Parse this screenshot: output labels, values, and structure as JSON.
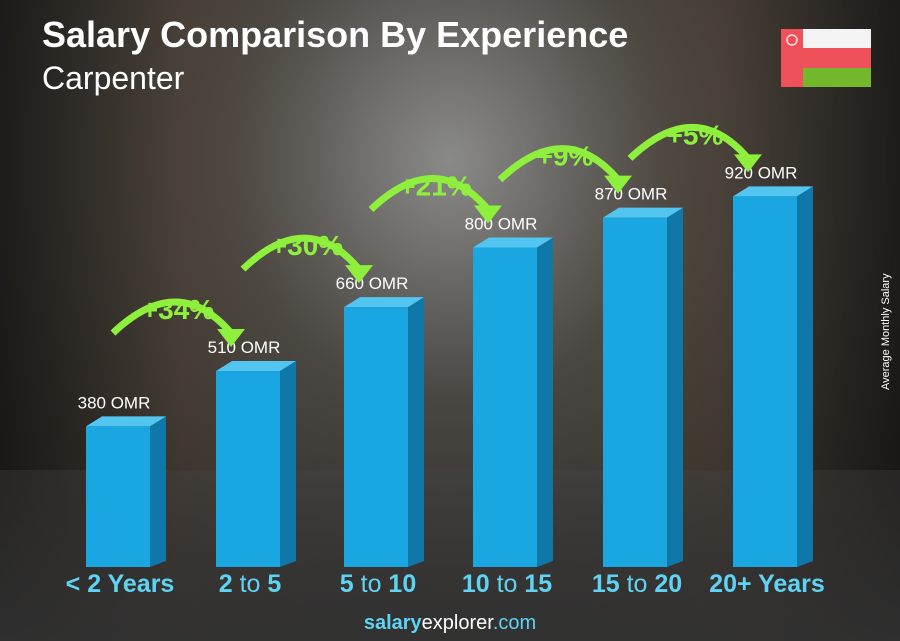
{
  "header": {
    "title": "Salary Comparison By Experience",
    "subtitle": "Carpenter"
  },
  "flag": {
    "country": "Oman",
    "colors": {
      "red": "#f0505a",
      "white": "#f4f4f4",
      "green": "#72b82a"
    }
  },
  "brand": {
    "part1": "salary",
    "part2": "explorer",
    "part3": ".com"
  },
  "chart_data": {
    "type": "bar",
    "ylabel": "Average Monthly Salary",
    "categories": [
      {
        "a": "< 2 Years",
        "mid": "",
        "b": ""
      },
      {
        "a": "2",
        "mid": " to ",
        "b": "5"
      },
      {
        "a": "5",
        "mid": " to ",
        "b": "10"
      },
      {
        "a": "10",
        "mid": " to ",
        "b": "15"
      },
      {
        "a": "15",
        "mid": " to ",
        "b": "20"
      },
      {
        "a": "20+ Years",
        "mid": "",
        "b": ""
      }
    ],
    "values": [
      380,
      510,
      660,
      800,
      870,
      920
    ],
    "value_labels": [
      "380 OMR",
      "510 OMR",
      "660 OMR",
      "800 OMR",
      "870 OMR",
      "920 OMR"
    ],
    "changes": [
      "+34%",
      "+30%",
      "+21%",
      "+9%",
      "+5%"
    ],
    "colors": {
      "bar": "#1aa6e0",
      "bar_side": "#0f78a8",
      "bar_top": "#52c6f0",
      "change": "#8ef03c",
      "category": "#5fd3f3"
    }
  }
}
